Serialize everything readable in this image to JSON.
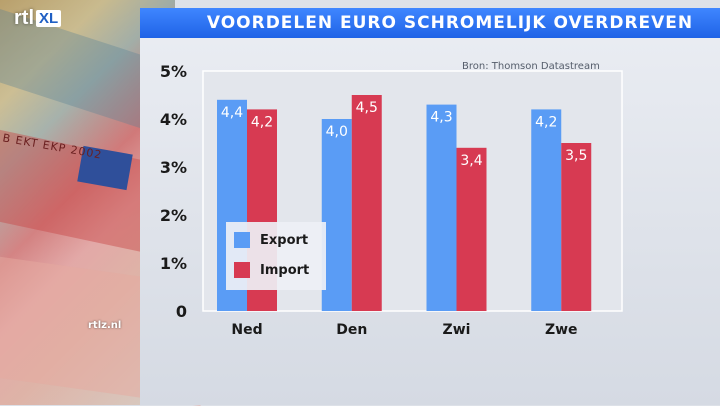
{
  "brand": {
    "logo_main": "rtl",
    "logo_box": "XL",
    "watermark": "rtlz.nl"
  },
  "header": {
    "title": "VOORDELEN EURO SCHROMELIJK OVERDREVEN"
  },
  "source_note": "Bron: Thomson Datastream",
  "background": {
    "note_text": "B EKT EKP 2002"
  },
  "colors": {
    "export": "#5a9cf5",
    "import": "#d73a52",
    "title_bar": "#2a6ff0"
  },
  "legend": {
    "export_label": "Export",
    "import_label": "Import"
  },
  "chart_data": {
    "type": "bar",
    "title": "VOORDELEN EURO SCHROMELIJK OVERDREVEN",
    "categories": [
      "Ned",
      "Den",
      "Zwi",
      "Zwe"
    ],
    "series": [
      {
        "name": "Export",
        "values": [
          4.4,
          4.0,
          4.3,
          4.2
        ],
        "labels": [
          "4,4",
          "4,0",
          "4,3",
          "4,2"
        ]
      },
      {
        "name": "Import",
        "values": [
          4.2,
          4.5,
          3.4,
          3.5
        ],
        "labels": [
          "4,2",
          "4,5",
          "3,4",
          "3,5"
        ]
      }
    ],
    "ylim": [
      0,
      5
    ],
    "yticks": [
      0,
      1,
      2,
      3,
      4,
      5
    ],
    "ytick_labels": [
      "0",
      "1%",
      "2%",
      "3%",
      "4%",
      "5%"
    ],
    "xlabel": "",
    "ylabel": "",
    "legend_position": "bottom-left inside plot"
  }
}
